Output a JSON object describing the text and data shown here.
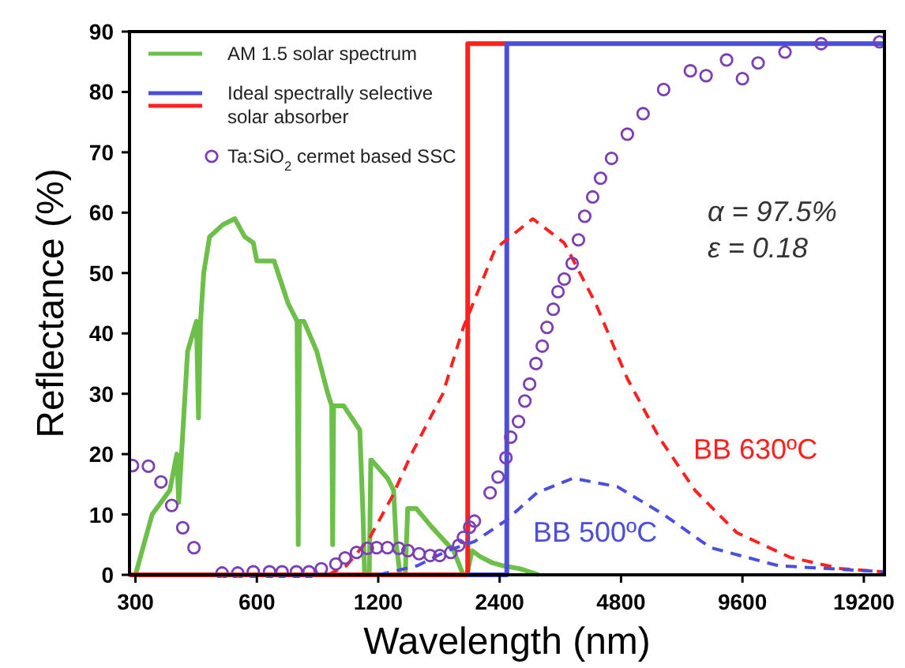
{
  "chart_data": {
    "type": "line",
    "xlabel": "Wavelength (nm)",
    "ylabel": "Reflectance (%)",
    "log": "x",
    "xlim": [
      290,
      21600
    ],
    "ylim": [
      0,
      90
    ],
    "xticks": [
      300,
      600,
      1200,
      2400,
      4800,
      9600,
      19200
    ],
    "yticks": [
      0,
      10,
      20,
      30,
      40,
      50,
      60,
      70,
      80,
      90
    ],
    "grid": false,
    "legend": "top left",
    "annotations": [
      "α = 97.5%",
      "ε = 0.18"
    ],
    "series": [
      {
        "name": "AM 1.5 solar spectrum",
        "color": "#6cc04a",
        "line_style": "solid",
        "x": [
          300,
          330,
          365,
          380,
          384,
          404,
          425,
          430,
          435,
          443,
          458,
          494,
          529,
          560,
          588,
          600,
          662,
          717,
          755,
          760,
          765,
          785,
          845,
          900,
          920,
          925,
          930,
          985,
          1080,
          1100,
          1110,
          1140,
          1150,
          1155,
          1265,
          1310,
          1330,
          1360,
          1400,
          1420,
          1490,
          1625,
          1845,
          1950,
          1990,
          2050,
          2150,
          2300,
          2450,
          2700,
          3000
        ],
        "values": [
          0,
          10,
          14,
          20,
          12,
          37,
          42,
          26,
          42,
          50,
          56,
          58,
          59,
          56,
          55,
          52,
          52,
          45,
          42,
          5,
          42,
          42,
          37,
          30,
          28,
          5,
          28,
          28,
          24,
          10,
          0,
          0,
          19,
          19,
          16,
          14,
          5,
          0,
          0,
          11,
          11,
          8,
          4,
          0,
          0,
          4,
          3,
          2,
          1.5,
          1,
          0
        ]
      },
      {
        "color": "#ff2020",
        "line_style": "solid",
        "x": [
          290,
          2000,
          2000,
          2500
        ],
        "values": [
          0,
          0,
          88,
          88
        ]
      },
      {
        "name": "Ideal spectrally selective solar absorber",
        "color": "#4b4fdc",
        "line_style": "solid",
        "x": [
          2000,
          2500,
          2500,
          21600
        ],
        "values": [
          0,
          0,
          88,
          88
        ]
      },
      {
        "name": "BB 630ºC",
        "color": "#ff2020",
        "line_style": "dashed",
        "x": [
          900,
          1000,
          1140,
          1300,
          1450,
          1735,
          1951,
          2340,
          2900,
          3470,
          4150,
          4976,
          5960,
          7320,
          9290,
          12600,
          16900,
          21600
        ],
        "values": [
          0,
          1.5,
          6,
          13,
          20,
          30,
          41,
          54,
          59,
          55,
          45,
          32.5,
          22.8,
          14,
          7,
          2.9,
          1,
          0.5
        ]
      },
      {
        "name": "BB 500ºC",
        "color": "#4b4fdc",
        "line_style": "dashed",
        "x": [
          1200,
          1500,
          1780,
          2078,
          2488,
          2970,
          3650,
          4700,
          6120,
          8000,
          11800,
          21600
        ],
        "values": [
          0,
          1.5,
          4,
          5.5,
          9,
          13.6,
          16,
          14.6,
          10,
          4.5,
          1.5,
          0.5
        ]
      },
      {
        "name": "Ta:SiO$_{2}$ cermet based SSC",
        "type": "scatter",
        "marker": "circle",
        "color": "#7b3fb3",
        "x": [
          295,
          323,
          347,
          369,
          393,
          419,
          492,
          538,
          588,
          645,
          693,
          752,
          808,
          867,
          942,
          993,
          1060,
          1128,
          1189,
          1265,
          1349,
          1422,
          1515,
          1614,
          1704,
          1816,
          1900,
          1951,
          2022,
          2078,
          2273,
          2379,
          2488,
          2556,
          2673,
          2772,
          2848,
          2953,
          3061,
          3145,
          3260,
          3349,
          3471,
          3631,
          3764,
          3901,
          4082,
          4269,
          4547,
          4976,
          5444,
          6122,
          7131,
          7801,
          8770,
          9600,
          10500,
          12240,
          15050,
          21000
        ],
        "values": [
          18.1,
          18,
          15.4,
          11.5,
          7.8,
          4.5,
          0.3,
          0.3,
          0.5,
          0.5,
          0.5,
          0.5,
          0.5,
          1,
          1.8,
          2.8,
          3.7,
          4.4,
          4.5,
          4.5,
          4.4,
          4,
          3.5,
          3.2,
          3.2,
          3.7,
          4.9,
          6.2,
          7.9,
          8.9,
          13.6,
          16.2,
          19.4,
          22.8,
          25.4,
          28.8,
          31.6,
          35,
          37.9,
          41,
          44,
          46.9,
          49,
          51.6,
          55.5,
          59.4,
          62.6,
          65.7,
          69,
          73,
          76.4,
          80.4,
          83.5,
          82.7,
          85.3,
          82.2,
          84.8,
          86.6,
          88,
          88.3
        ]
      }
    ]
  }
}
